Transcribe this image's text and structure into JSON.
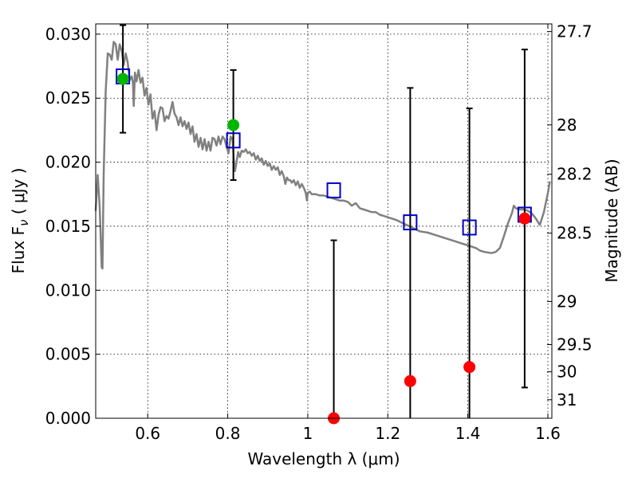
{
  "chart_data": {
    "type": "scatter",
    "xlabel": "Wavelength  λ (μm)",
    "ylabel": "Flux  F",
    "ylabel_sub": "ν",
    "ylabel_unit": " ( μJy )",
    "ylabel_right": "Magnitude (AB)",
    "xlim": [
      0.47,
      1.61
    ],
    "ylim": [
      0.0,
      0.0308
    ],
    "grid": true,
    "x_ticks": [
      0.6,
      0.8,
      1.0,
      1.2,
      1.4,
      1.6
    ],
    "x_tick_labels": [
      "0.6",
      "0.8",
      "1",
      "1.2",
      "1.4",
      "1.6"
    ],
    "y_ticks": [
      0.0,
      0.005,
      0.01,
      0.015,
      0.02,
      0.025,
      0.03
    ],
    "y_tick_labels": [
      "0.000",
      "0.005",
      "0.010",
      "0.015",
      "0.020",
      "0.025",
      "0.030"
    ],
    "right_ticks": [
      {
        "label": "27.7",
        "mag": 27.7
      },
      {
        "label": "28",
        "mag": 28.0
      },
      {
        "label": "28.2",
        "mag": 28.2
      },
      {
        "label": "28.5",
        "mag": 28.5
      },
      {
        "label": "29",
        "mag": 29.0
      },
      {
        "label": "29.5",
        "mag": 29.5
      },
      {
        "label": "30",
        "mag": 30.0
      },
      {
        "label": "31",
        "mag": 31.0
      }
    ],
    "colors": {
      "model": "#808080",
      "detected": "#00b400",
      "undetected": "#ff0000",
      "model_photometry": "#0000cc",
      "errorbar": "#000000",
      "grid": "#000000"
    },
    "series": [
      {
        "kind": "line",
        "points": [
          [
            0.47,
            0.0162
          ],
          [
            0.475,
            0.019
          ],
          [
            0.48,
            0.0165
          ],
          [
            0.485,
            0.0118
          ],
          [
            0.487,
            0.0117
          ],
          [
            0.49,
            0.019
          ],
          [
            0.495,
            0.0255
          ],
          [
            0.5,
            0.0285
          ],
          [
            0.505,
            0.0284
          ],
          [
            0.51,
            0.028
          ],
          [
            0.515,
            0.0294
          ],
          [
            0.52,
            0.0292
          ],
          [
            0.525,
            0.028
          ],
          [
            0.53,
            0.0292
          ],
          [
            0.535,
            0.0287
          ],
          [
            0.54,
            0.0276
          ],
          [
            0.545,
            0.0285
          ],
          [
            0.55,
            0.0278
          ],
          [
            0.555,
            0.0264
          ],
          [
            0.56,
            0.0267
          ],
          [
            0.563,
            0.0262
          ],
          [
            0.565,
            0.0244
          ],
          [
            0.568,
            0.027
          ],
          [
            0.572,
            0.0263
          ],
          [
            0.577,
            0.0272
          ],
          [
            0.582,
            0.0262
          ],
          [
            0.587,
            0.0266
          ],
          [
            0.592,
            0.0252
          ],
          [
            0.597,
            0.0258
          ],
          [
            0.602,
            0.0245
          ],
          [
            0.607,
            0.0253
          ],
          [
            0.612,
            0.0234
          ],
          [
            0.617,
            0.024
          ],
          [
            0.622,
            0.0225
          ],
          [
            0.627,
            0.0237
          ],
          [
            0.632,
            0.0243
          ],
          [
            0.637,
            0.0242
          ],
          [
            0.642,
            0.0232
          ],
          [
            0.647,
            0.0236
          ],
          [
            0.652,
            0.0234
          ],
          [
            0.657,
            0.024
          ],
          [
            0.662,
            0.0247
          ],
          [
            0.667,
            0.0238
          ],
          [
            0.672,
            0.0235
          ],
          [
            0.677,
            0.0229
          ],
          [
            0.682,
            0.0235
          ],
          [
            0.687,
            0.0228
          ],
          [
            0.692,
            0.0232
          ],
          [
            0.697,
            0.0226
          ],
          [
            0.702,
            0.0231
          ],
          [
            0.707,
            0.0222
          ],
          [
            0.712,
            0.0228
          ],
          [
            0.717,
            0.0216
          ],
          [
            0.722,
            0.0222
          ],
          [
            0.727,
            0.0212
          ],
          [
            0.732,
            0.0219
          ],
          [
            0.737,
            0.021
          ],
          [
            0.742,
            0.0218
          ],
          [
            0.747,
            0.0209
          ],
          [
            0.752,
            0.0216
          ],
          [
            0.757,
            0.0209
          ],
          [
            0.762,
            0.0219
          ],
          [
            0.767,
            0.0218
          ],
          [
            0.772,
            0.0213
          ],
          [
            0.777,
            0.022
          ],
          [
            0.782,
            0.0214
          ],
          [
            0.787,
            0.022
          ],
          [
            0.792,
            0.0218
          ],
          [
            0.797,
            0.0212
          ],
          [
            0.802,
            0.0207
          ],
          [
            0.807,
            0.022
          ],
          [
            0.81,
            0.0218
          ],
          [
            0.812,
            0.0219
          ],
          [
            0.815,
            0.0203
          ],
          [
            0.818,
            0.0193
          ],
          [
            0.822,
            0.02
          ],
          [
            0.826,
            0.0208
          ],
          [
            0.83,
            0.0204
          ],
          [
            0.835,
            0.0209
          ],
          [
            0.84,
            0.0208
          ],
          [
            0.845,
            0.021
          ],
          [
            0.85,
            0.0207
          ],
          [
            0.855,
            0.0208
          ],
          [
            0.86,
            0.0205
          ],
          [
            0.865,
            0.0207
          ],
          [
            0.87,
            0.0202
          ],
          [
            0.875,
            0.0205
          ],
          [
            0.88,
            0.0201
          ],
          [
            0.885,
            0.0203
          ],
          [
            0.89,
            0.0198
          ],
          [
            0.895,
            0.0201
          ],
          [
            0.9,
            0.0197
          ],
          [
            0.905,
            0.0199
          ],
          [
            0.91,
            0.0194
          ],
          [
            0.915,
            0.0197
          ],
          [
            0.92,
            0.0194
          ],
          [
            0.925,
            0.0196
          ],
          [
            0.93,
            0.019
          ],
          [
            0.935,
            0.0193
          ],
          [
            0.94,
            0.0189
          ],
          [
            0.944,
            0.0183
          ],
          [
            0.948,
            0.0188
          ],
          [
            0.952,
            0.0186
          ],
          [
            0.956,
            0.0186
          ],
          [
            0.96,
            0.0184
          ],
          [
            0.965,
            0.0186
          ],
          [
            0.97,
            0.0182
          ],
          [
            0.975,
            0.0185
          ],
          [
            0.98,
            0.018
          ],
          [
            0.985,
            0.0183
          ],
          [
            0.99,
            0.018
          ],
          [
            0.995,
            0.0176
          ],
          [
            0.998,
            0.017
          ],
          [
            1.0,
            0.0176
          ],
          [
            1.005,
            0.0177
          ],
          [
            1.01,
            0.0175
          ],
          [
            1.02,
            0.0175
          ],
          [
            1.03,
            0.0174
          ],
          [
            1.04,
            0.0174
          ],
          [
            1.05,
            0.0173
          ],
          [
            1.06,
            0.0172
          ],
          [
            1.07,
            0.0171
          ],
          [
            1.08,
            0.017
          ],
          [
            1.09,
            0.017
          ],
          [
            1.1,
            0.0169
          ],
          [
            1.11,
            0.0166
          ],
          [
            1.12,
            0.0168
          ],
          [
            1.13,
            0.0164
          ],
          [
            1.14,
            0.0163
          ],
          [
            1.15,
            0.0162
          ],
          [
            1.16,
            0.0161
          ],
          [
            1.17,
            0.0161
          ],
          [
            1.18,
            0.0159
          ],
          [
            1.19,
            0.0158
          ],
          [
            1.2,
            0.0157
          ],
          [
            1.21,
            0.0156
          ],
          [
            1.22,
            0.0155
          ],
          [
            1.24,
            0.0152
          ],
          [
            1.26,
            0.0149
          ],
          [
            1.28,
            0.0146
          ],
          [
            1.3,
            0.0145
          ],
          [
            1.32,
            0.0143
          ],
          [
            1.34,
            0.0141
          ],
          [
            1.36,
            0.0139
          ],
          [
            1.38,
            0.0137
          ],
          [
            1.4,
            0.0135
          ],
          [
            1.42,
            0.0133
          ],
          [
            1.43,
            0.0131
          ],
          [
            1.44,
            0.013
          ],
          [
            1.46,
            0.0129
          ],
          [
            1.47,
            0.013
          ],
          [
            1.48,
            0.0133
          ],
          [
            1.49,
            0.0142
          ],
          [
            1.5,
            0.0152
          ],
          [
            1.51,
            0.016
          ],
          [
            1.515,
            0.0166
          ],
          [
            1.52,
            0.0164
          ],
          [
            1.53,
            0.0163
          ],
          [
            1.54,
            0.0163
          ],
          [
            1.55,
            0.0162
          ],
          [
            1.56,
            0.016
          ],
          [
            1.57,
            0.0156
          ],
          [
            1.58,
            0.0151
          ],
          [
            1.59,
            0.0161
          ],
          [
            1.6,
            0.0176
          ],
          [
            1.605,
            0.0185
          ]
        ]
      },
      {
        "kind": "model_photometry",
        "points": [
          {
            "x": 0.538,
            "y": 0.0267
          },
          {
            "x": 0.814,
            "y": 0.0217
          },
          {
            "x": 1.065,
            "y": 0.0178
          },
          {
            "x": 1.256,
            "y": 0.0153
          },
          {
            "x": 1.404,
            "y": 0.0149
          },
          {
            "x": 1.542,
            "y": 0.0159
          }
        ]
      },
      {
        "kind": "observed",
        "points": [
          {
            "x": 0.538,
            "y": 0.0265,
            "err": 0.0042,
            "detected": true
          },
          {
            "x": 0.814,
            "y": 0.0229,
            "err": 0.0043,
            "detected": true
          },
          {
            "x": 1.065,
            "y": 0.0,
            "err": 0.0139,
            "detected": false
          },
          {
            "x": 1.256,
            "y": 0.0029,
            "err": 0.0229,
            "detected": false
          },
          {
            "x": 1.404,
            "y": 0.004,
            "err": 0.0202,
            "detected": false
          },
          {
            "x": 1.542,
            "y": 0.0156,
            "err": 0.0132,
            "detected": false
          }
        ]
      }
    ]
  }
}
